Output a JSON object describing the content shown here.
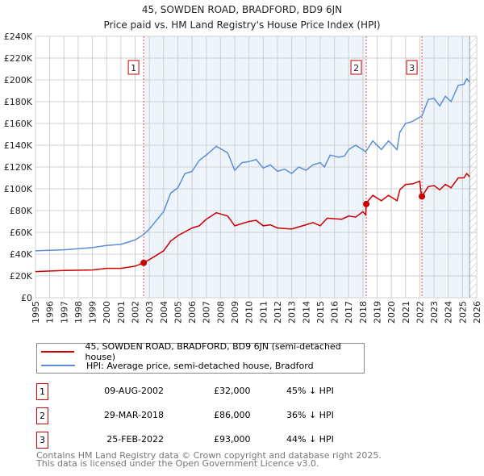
{
  "chart_data": {
    "type": "line",
    "title": "45, SOWDEN ROAD, BRADFORD, BD9 6JN",
    "subtitle": "Price paid vs. HM Land Registry's House Price Index (HPI)",
    "xlim": [
      1995,
      2026
    ],
    "ylim": [
      0,
      240000
    ],
    "grid": true,
    "x_ticks": [
      "1995",
      "1996",
      "1997",
      "1998",
      "1999",
      "2000",
      "2001",
      "2002",
      "2003",
      "2004",
      "2005",
      "2006",
      "2007",
      "2008",
      "2009",
      "2010",
      "2011",
      "2012",
      "2013",
      "2014",
      "2015",
      "2016",
      "2017",
      "2018",
      "2019",
      "2020",
      "2021",
      "2022",
      "2023",
      "2024",
      "2025",
      "2026"
    ],
    "y_ticks": [
      {
        "v": 0,
        "label": "£0"
      },
      {
        "v": 20000,
        "label": "£20K"
      },
      {
        "v": 40000,
        "label": "£40K"
      },
      {
        "v": 60000,
        "label": "£60K"
      },
      {
        "v": 80000,
        "label": "£80K"
      },
      {
        "v": 100000,
        "label": "£100K"
      },
      {
        "v": 120000,
        "label": "£120K"
      },
      {
        "v": 140000,
        "label": "£140K"
      },
      {
        "v": 160000,
        "label": "£160K"
      },
      {
        "v": 180000,
        "label": "£180K"
      },
      {
        "v": 200000,
        "label": "£200K"
      },
      {
        "v": 220000,
        "label": "£220K"
      },
      {
        "v": 240000,
        "label": "£240K"
      }
    ],
    "legend_placement": "below",
    "series": [
      {
        "name": "45, SOWDEN ROAD, BRADFORD, BD9 6JN (semi-detached house)",
        "color": "#cc0000",
        "x": [
          1995,
          1997,
          1999,
          2000,
          2001,
          2002,
          2002.6,
          2003,
          2004,
          2004.5,
          2005,
          2006,
          2006.5,
          2007,
          2007.7,
          2008.5,
          2009,
          2010,
          2010.5,
          2011,
          2011.5,
          2012,
          2013,
          2014,
          2014.5,
          2015,
          2015.5,
          2016.5,
          2017,
          2017.5,
          2018,
          2018.2,
          2018.24,
          2018.7,
          2019.3,
          2019.8,
          2020.4,
          2020.6,
          2021,
          2021.5,
          2022.0,
          2022.1,
          2022.15,
          2022.6,
          2023,
          2023.4,
          2023.8,
          2024.2,
          2024.7,
          2025.1,
          2025.3,
          2025.5
        ],
        "y": [
          24000,
          25000,
          25500,
          27000,
          27000,
          29000,
          32000,
          35000,
          43000,
          52000,
          57000,
          64000,
          66000,
          72000,
          78000,
          75000,
          66000,
          70000,
          71000,
          66000,
          67000,
          64000,
          63000,
          67000,
          69000,
          66000,
          73000,
          72000,
          75000,
          74000,
          79000,
          76000,
          87000,
          94000,
          89000,
          94000,
          89000,
          99000,
          104000,
          104500,
          107000,
          94500,
          93000,
          102000,
          103000,
          99000,
          104000,
          101000,
          110000,
          110000,
          114000,
          111000
        ]
      },
      {
        "name": "HPI: Average price, semi-detached house, Bradford",
        "color": "#5b8fd4",
        "x": [
          1995,
          1997,
          1999,
          2000,
          2001,
          2002,
          2002.6,
          2003,
          2004,
          2004.5,
          2005,
          2005.5,
          2006,
          2006.5,
          2007,
          2007.7,
          2008.5,
          2009,
          2009.5,
          2010,
          2010.5,
          2011,
          2011.5,
          2012,
          2012.5,
          2013,
          2013.5,
          2014,
          2014.5,
          2015,
          2015.3,
          2015.7,
          2016.3,
          2016.7,
          2017,
          2017.5,
          2018.2,
          2018.7,
          2019.3,
          2019.8,
          2020.4,
          2020.6,
          2021,
          2021.5,
          2022.15,
          2022.6,
          2023,
          2023.4,
          2023.8,
          2024.2,
          2024.7,
          2025.1,
          2025.3,
          2025.5
        ],
        "y": [
          43000,
          44000,
          46000,
          48000,
          49000,
          53000,
          58000,
          63000,
          79000,
          96000,
          101000,
          114000,
          116000,
          126000,
          131000,
          139000,
          133000,
          117000,
          124000,
          125000,
          127000,
          119000,
          122000,
          116000,
          118000,
          114000,
          120000,
          117000,
          122000,
          124000,
          120000,
          131000,
          129000,
          130000,
          136000,
          140000,
          134000,
          144000,
          136000,
          144000,
          136000,
          152000,
          160000,
          162000,
          167000,
          182000,
          183000,
          176000,
          185000,
          180000,
          195000,
          196000,
          201000,
          198000
        ]
      }
    ],
    "sales": [
      {
        "n": "1",
        "x": 2002.6,
        "y": 32000,
        "date": "09-AUG-2002",
        "price": "£32,000",
        "hpi": "45% ↓ HPI"
      },
      {
        "n": "2",
        "x": 2018.24,
        "y": 86000,
        "date": "29-MAR-2018",
        "price": "£86,000",
        "hpi": "36% ↓ HPI"
      },
      {
        "n": "3",
        "x": 2022.15,
        "y": 93000,
        "date": "25-FEB-2022",
        "price": "£93,000",
        "hpi": "44% ↓ HPI"
      }
    ],
    "shaded_ranges": [
      [
        2002.6,
        2018.24
      ],
      [
        2022.15,
        2025.5
      ]
    ],
    "forecast_from": 2025.5
  },
  "footer": {
    "line1": "Contains HM Land Registry data © Crown copyright and database right 2025.",
    "line2": "This data is licensed under the Open Government Licence v3.0."
  }
}
